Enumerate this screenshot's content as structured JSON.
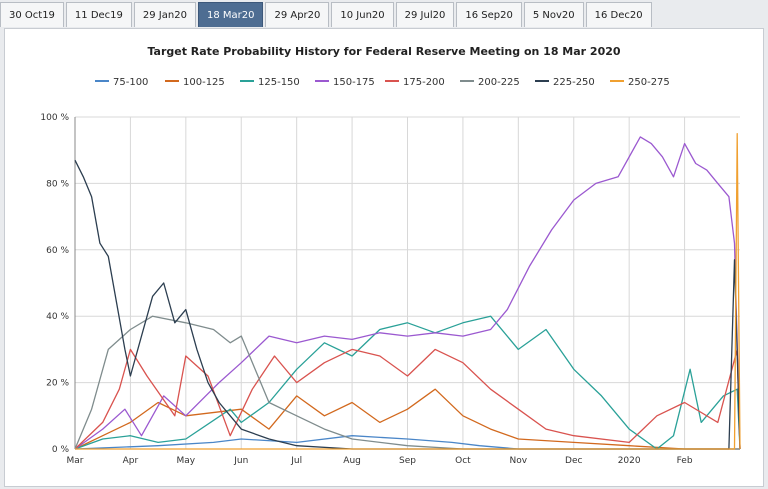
{
  "tabs": [
    "30 Oct19",
    "11 Dec19",
    "29 Jan20",
    "18 Mar20",
    "29 Apr20",
    "10 Jun20",
    "29 Jul20",
    "16 Sep20",
    "5 Nov20",
    "16 Dec20"
  ],
  "active_tab": "18 Mar20",
  "chart_data": {
    "type": "line",
    "title": "Target Rate Probability History for Federal Reserve Meeting on 18 Mar 2020",
    "ylim": [
      0,
      100
    ],
    "y_ticks": [
      "0 %",
      "20 %",
      "40 %",
      "60 %",
      "80 %",
      "100 %"
    ],
    "x_ticks": [
      "Mar",
      "Apr",
      "May",
      "Jun",
      "Jul",
      "Aug",
      "Sep",
      "Oct",
      "Nov",
      "Dec",
      "2020",
      "Feb"
    ],
    "x_range_months": [
      0,
      12.0
    ],
    "legend_position": "top",
    "grid": true,
    "series": [
      {
        "name": "75-100",
        "color": "#4a86c8",
        "points": [
          [
            0,
            0
          ],
          [
            1.5,
            1
          ],
          [
            2.5,
            2
          ],
          [
            3.0,
            3
          ],
          [
            4.0,
            2
          ],
          [
            5.0,
            4
          ],
          [
            6.0,
            3
          ],
          [
            6.8,
            2
          ],
          [
            7.3,
            1
          ],
          [
            8,
            0
          ],
          [
            12,
            0
          ]
        ]
      },
      {
        "name": "100-125",
        "color": "#d2691e",
        "points": [
          [
            0,
            0
          ],
          [
            0.5,
            4
          ],
          [
            1.0,
            8
          ],
          [
            1.5,
            14
          ],
          [
            2.0,
            10
          ],
          [
            3.0,
            12
          ],
          [
            3.5,
            6
          ],
          [
            4.0,
            16
          ],
          [
            4.5,
            10
          ],
          [
            5.0,
            14
          ],
          [
            5.5,
            8
          ],
          [
            6.0,
            12
          ],
          [
            6.5,
            18
          ],
          [
            7.0,
            10
          ],
          [
            7.5,
            6
          ],
          [
            8.0,
            3
          ],
          [
            9.0,
            2
          ],
          [
            10,
            1
          ],
          [
            11,
            0
          ],
          [
            12,
            0
          ]
        ]
      },
      {
        "name": "125-150",
        "color": "#2aa198",
        "points": [
          [
            0,
            0
          ],
          [
            0.5,
            3
          ],
          [
            1.0,
            4
          ],
          [
            1.5,
            2
          ],
          [
            2.0,
            3
          ],
          [
            2.8,
            12
          ],
          [
            3.0,
            8
          ],
          [
            3.5,
            14
          ],
          [
            4.0,
            24
          ],
          [
            4.5,
            32
          ],
          [
            5.0,
            28
          ],
          [
            5.5,
            36
          ],
          [
            6.0,
            38
          ],
          [
            6.5,
            35
          ],
          [
            7.0,
            38
          ],
          [
            7.5,
            40
          ],
          [
            8.0,
            30
          ],
          [
            8.5,
            36
          ],
          [
            9.0,
            24
          ],
          [
            9.5,
            16
          ],
          [
            10.0,
            6
          ],
          [
            10.5,
            0
          ],
          [
            10.8,
            4
          ],
          [
            11.1,
            24
          ],
          [
            11.3,
            8
          ],
          [
            11.7,
            16
          ],
          [
            11.95,
            18
          ],
          [
            12,
            0
          ]
        ]
      },
      {
        "name": "150-175",
        "color": "#9b59d0",
        "points": [
          [
            0,
            0
          ],
          [
            0.5,
            6
          ],
          [
            0.9,
            12
          ],
          [
            1.2,
            4
          ],
          [
            1.6,
            16
          ],
          [
            2.0,
            10
          ],
          [
            2.6,
            20
          ],
          [
            3.0,
            26
          ],
          [
            3.5,
            34
          ],
          [
            4.0,
            32
          ],
          [
            4.5,
            34
          ],
          [
            5.0,
            33
          ],
          [
            5.5,
            35
          ],
          [
            6.0,
            34
          ],
          [
            6.5,
            35
          ],
          [
            7.0,
            34
          ],
          [
            7.5,
            36
          ],
          [
            7.8,
            42
          ],
          [
            8.2,
            55
          ],
          [
            8.6,
            66
          ],
          [
            9.0,
            75
          ],
          [
            9.4,
            80
          ],
          [
            9.8,
            82
          ],
          [
            10.2,
            94
          ],
          [
            10.4,
            92
          ],
          [
            10.6,
            88
          ],
          [
            10.8,
            82
          ],
          [
            11.0,
            92
          ],
          [
            11.2,
            86
          ],
          [
            11.4,
            84
          ],
          [
            11.6,
            80
          ],
          [
            11.8,
            76
          ],
          [
            11.9,
            62
          ],
          [
            12,
            0
          ]
        ]
      },
      {
        "name": "175-200",
        "color": "#d9534f",
        "points": [
          [
            0,
            0
          ],
          [
            0.5,
            8
          ],
          [
            0.8,
            18
          ],
          [
            1.0,
            30
          ],
          [
            1.3,
            22
          ],
          [
            1.8,
            10
          ],
          [
            2.0,
            28
          ],
          [
            2.4,
            22
          ],
          [
            2.8,
            4
          ],
          [
            3.2,
            18
          ],
          [
            3.6,
            28
          ],
          [
            4.0,
            20
          ],
          [
            4.5,
            26
          ],
          [
            5.0,
            30
          ],
          [
            5.5,
            28
          ],
          [
            6.0,
            22
          ],
          [
            6.5,
            30
          ],
          [
            7.0,
            26
          ],
          [
            7.5,
            18
          ],
          [
            8.0,
            12
          ],
          [
            8.5,
            6
          ],
          [
            9.0,
            4
          ],
          [
            10.0,
            2
          ],
          [
            10.5,
            10
          ],
          [
            11,
            14
          ],
          [
            11.6,
            8
          ],
          [
            11.95,
            30
          ],
          [
            12,
            0
          ]
        ]
      },
      {
        "name": "200-225",
        "color": "#7f8c8d",
        "points": [
          [
            0,
            0
          ],
          [
            0.3,
            12
          ],
          [
            0.6,
            30
          ],
          [
            1.0,
            36
          ],
          [
            1.4,
            40
          ],
          [
            2.0,
            38
          ],
          [
            2.5,
            36
          ],
          [
            2.8,
            32
          ],
          [
            3.0,
            34
          ],
          [
            3.5,
            14
          ],
          [
            4.0,
            10
          ],
          [
            4.5,
            6
          ],
          [
            5.0,
            3
          ],
          [
            6.0,
            1
          ],
          [
            7.0,
            0
          ],
          [
            12,
            0
          ]
        ]
      },
      {
        "name": "225-250",
        "color": "#2c3e50",
        "points": [
          [
            0,
            87
          ],
          [
            0.15,
            82
          ],
          [
            0.3,
            76
          ],
          [
            0.45,
            62
          ],
          [
            0.6,
            58
          ],
          [
            0.75,
            44
          ],
          [
            0.9,
            30
          ],
          [
            1.0,
            22
          ],
          [
            1.2,
            34
          ],
          [
            1.4,
            46
          ],
          [
            1.6,
            50
          ],
          [
            1.8,
            38
          ],
          [
            2.0,
            42
          ],
          [
            2.2,
            30
          ],
          [
            2.4,
            20
          ],
          [
            2.6,
            14
          ],
          [
            2.8,
            10
          ],
          [
            3.0,
            6
          ],
          [
            3.5,
            3
          ],
          [
            4.0,
            1
          ],
          [
            5.0,
            0
          ],
          [
            11.8,
            0
          ],
          [
            11.9,
            57
          ],
          [
            12,
            0
          ]
        ]
      },
      {
        "name": "250-275",
        "color": "#f0a030",
        "points": [
          [
            0,
            0
          ],
          [
            11.9,
            0
          ],
          [
            11.95,
            95
          ],
          [
            12,
            0
          ]
        ]
      }
    ]
  }
}
